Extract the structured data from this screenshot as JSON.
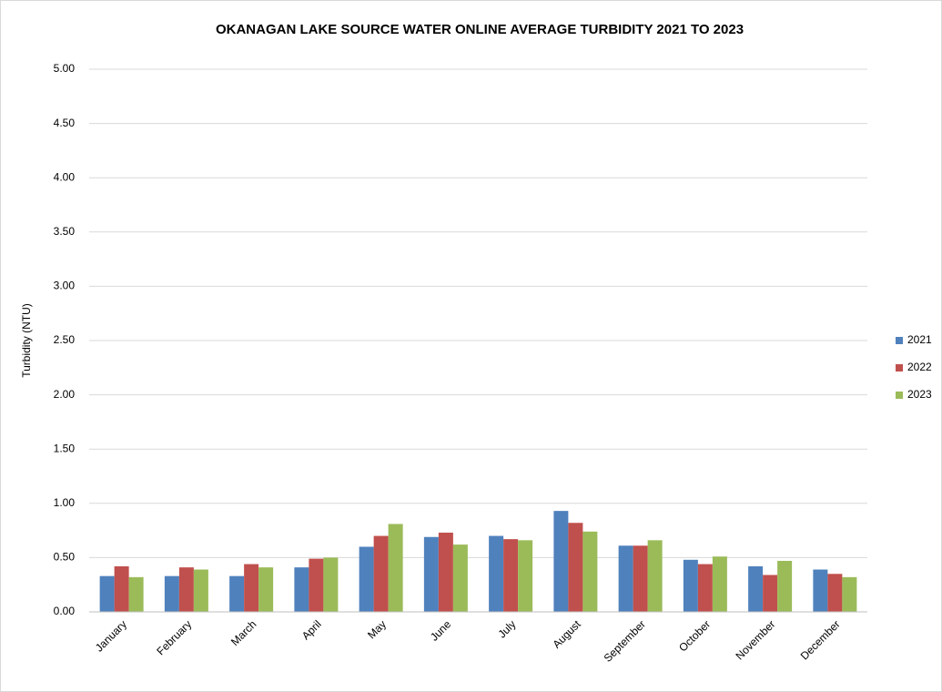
{
  "chart_data": {
    "type": "bar",
    "title": "OKANAGAN LAKE SOURCE WATER ONLINE AVERAGE TURBIDITY 2021 TO 2023",
    "y_label": "Turbidity (NTU)",
    "categories": [
      "January",
      "February",
      "March",
      "April",
      "May",
      "June",
      "July",
      "August",
      "September",
      "October",
      "November",
      "December"
    ],
    "series": [
      {
        "name": "2021",
        "color": "#4f81bd",
        "values": [
          0.33,
          0.33,
          0.33,
          0.41,
          0.6,
          0.69,
          0.7,
          0.93,
          0.61,
          0.48,
          0.42,
          0.39
        ]
      },
      {
        "name": "2022",
        "color": "#c0504d",
        "values": [
          0.42,
          0.41,
          0.44,
          0.49,
          0.7,
          0.73,
          0.67,
          0.82,
          0.61,
          0.44,
          0.34,
          0.35
        ]
      },
      {
        "name": "2023",
        "color": "#9bbb59",
        "values": [
          0.32,
          0.39,
          0.41,
          0.5,
          0.81,
          0.62,
          0.66,
          0.74,
          0.66,
          0.51,
          0.47,
          0.32
        ]
      }
    ],
    "ylim": [
      0,
      5
    ],
    "yticks": [
      {
        "value": 0,
        "label": "0.00"
      },
      {
        "value": 0.5,
        "label": "0.50"
      },
      {
        "value": 1,
        "label": "1.00"
      },
      {
        "value": 1.5,
        "label": "1.50"
      },
      {
        "value": 2,
        "label": "2.00"
      },
      {
        "value": 2.5,
        "label": "2.50"
      },
      {
        "value": 3,
        "label": "3.00"
      },
      {
        "value": 3.5,
        "label": "3.50"
      },
      {
        "value": 4,
        "label": "4.00"
      },
      {
        "value": 4.5,
        "label": "4.50"
      },
      {
        "value": 5,
        "label": "5.00"
      }
    ],
    "grid": true,
    "legend": "right"
  }
}
